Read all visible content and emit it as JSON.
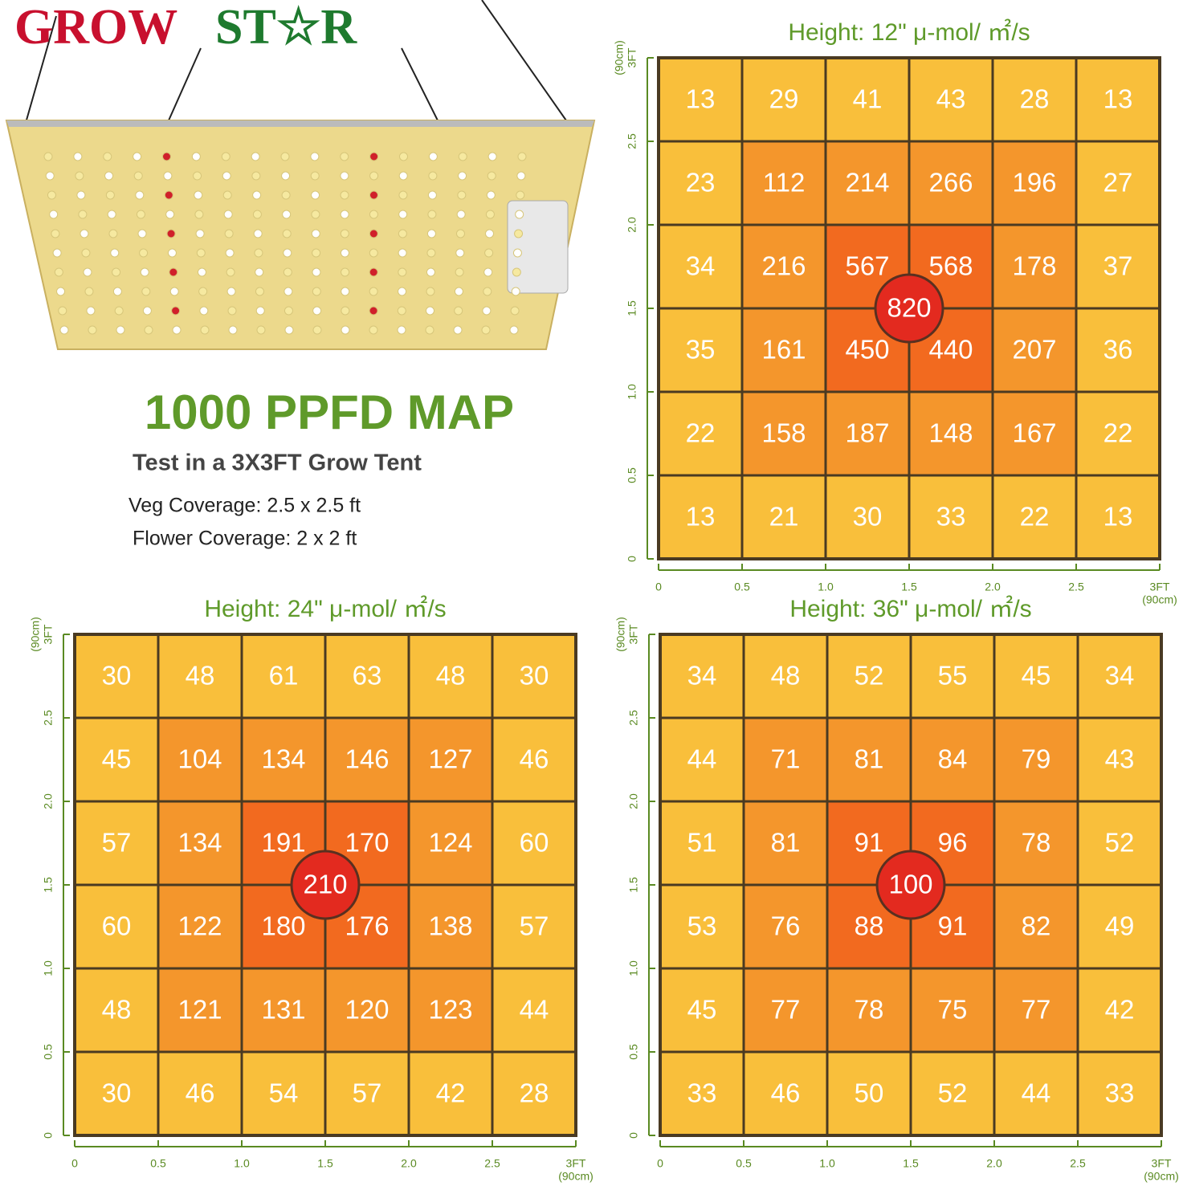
{
  "brand": [
    "GROW",
    "ST☆R"
  ],
  "headline": "1000 PPFD MAP",
  "subtitle": "Test in a 3X3FT Grow Tent",
  "notes": [
    "Veg Coverage: 2.5 x 2.5 ft",
    "Flower Coverage: 2 x 2 ft"
  ],
  "chart_data": [
    {
      "type": "heatmap",
      "title": "Height: 12\" μ-mol/ ㎡/s",
      "values": [
        [
          13,
          29,
          41,
          43,
          28,
          13
        ],
        [
          23,
          112,
          214,
          266,
          196,
          27
        ],
        [
          34,
          216,
          567,
          568,
          178,
          37
        ],
        [
          35,
          161,
          450,
          440,
          207,
          36
        ],
        [
          22,
          158,
          187,
          148,
          167,
          22
        ],
        [
          13,
          21,
          30,
          33,
          22,
          13
        ]
      ],
      "center_value": 820,
      "xlim": [
        0,
        3
      ],
      "ylim": [
        0,
        3
      ],
      "xticks": [
        0,
        0.5,
        {
          "value": 1,
          "label": "1.0"
        },
        1.5,
        {
          "value": 2,
          "label": "2.0"
        },
        2.5,
        {
          "value": 3,
          "label": "3FT"
        }
      ],
      "yticks": [
        0,
        0.5,
        {
          "value": 1,
          "label": "1.0"
        },
        1.5,
        {
          "value": 2,
          "label": "2.0"
        },
        2.5,
        {
          "value": 3,
          "label": "3FT"
        }
      ],
      "x_unit": "(90cm)",
      "y_unit": "(90cm)"
    },
    {
      "type": "heatmap",
      "title": "Height: 24\" μ-mol/ ㎡/s",
      "values": [
        [
          30,
          48,
          61,
          63,
          48,
          30
        ],
        [
          45,
          104,
          134,
          146,
          127,
          46
        ],
        [
          57,
          134,
          191,
          170,
          124,
          60
        ],
        [
          60,
          122,
          180,
          176,
          138,
          57
        ],
        [
          48,
          121,
          131,
          120,
          123,
          44
        ],
        [
          30,
          46,
          54,
          57,
          42,
          28
        ]
      ],
      "center_value": 210,
      "xlim": [
        0,
        3
      ],
      "ylim": [
        0,
        3
      ],
      "xticks": [
        0,
        0.5,
        {
          "value": 1,
          "label": "1.0"
        },
        1.5,
        {
          "value": 2,
          "label": "2.0"
        },
        2.5,
        {
          "value": 3,
          "label": "3FT"
        }
      ],
      "yticks": [
        0,
        0.5,
        {
          "value": 1,
          "label": "1.0"
        },
        1.5,
        {
          "value": 2,
          "label": "2.0"
        },
        2.5,
        {
          "value": 3,
          "label": "3FT"
        }
      ],
      "x_unit": "(90cm)",
      "y_unit": "(90cm)"
    },
    {
      "type": "heatmap",
      "title": "Height: 36\" μ-mol/ ㎡/s",
      "values": [
        [
          34,
          48,
          52,
          55,
          45,
          34
        ],
        [
          44,
          71,
          81,
          84,
          79,
          43
        ],
        [
          51,
          81,
          91,
          96,
          78,
          52
        ],
        [
          53,
          76,
          88,
          91,
          82,
          49
        ],
        [
          45,
          77,
          78,
          75,
          77,
          42
        ],
        [
          33,
          46,
          50,
          52,
          44,
          33
        ]
      ],
      "center_value": 100,
      "xlim": [
        0,
        3
      ],
      "ylim": [
        0,
        3
      ],
      "xticks": [
        0,
        0.5,
        {
          "value": 1,
          "label": "1.0"
        },
        1.5,
        {
          "value": 2,
          "label": "2.0"
        },
        2.5,
        {
          "value": 3,
          "label": "3FT"
        }
      ],
      "yticks": [
        0,
        0.5,
        {
          "value": 1,
          "label": "1.0"
        },
        1.5,
        {
          "value": 2,
          "label": "2.0"
        },
        2.5,
        {
          "value": 3,
          "label": "3FT"
        }
      ],
      "x_unit": "(90cm)",
      "y_unit": "(90cm)"
    }
  ]
}
